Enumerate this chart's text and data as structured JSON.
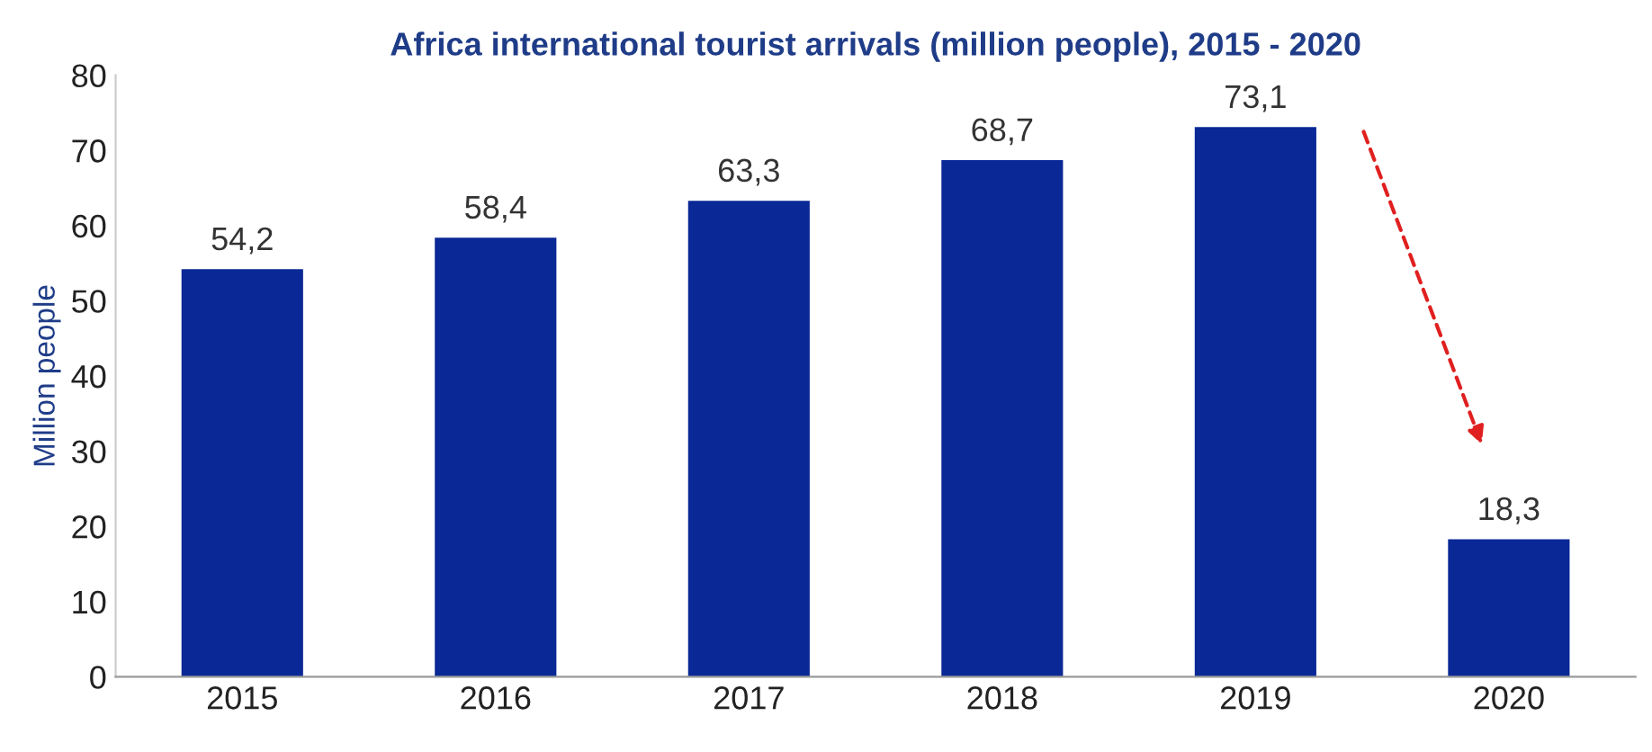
{
  "chart_data": {
    "type": "bar",
    "title": "Africa international tourist arrivals (million people), 2015 - 2020",
    "ylabel": "Million people",
    "categories": [
      "2015",
      "2016",
      "2017",
      "2018",
      "2019",
      "2020"
    ],
    "values": [
      54.2,
      58.4,
      63.3,
      68.7,
      73.1,
      18.3
    ],
    "value_labels": [
      "54,2",
      "58,4",
      "63,3",
      "68,7",
      "73,1",
      "18,3"
    ],
    "color": "#0a2896",
    "ylim": [
      0,
      80
    ],
    "yticks": [
      0,
      10,
      20,
      30,
      40,
      50,
      60,
      70,
      80
    ],
    "grid": false
  }
}
